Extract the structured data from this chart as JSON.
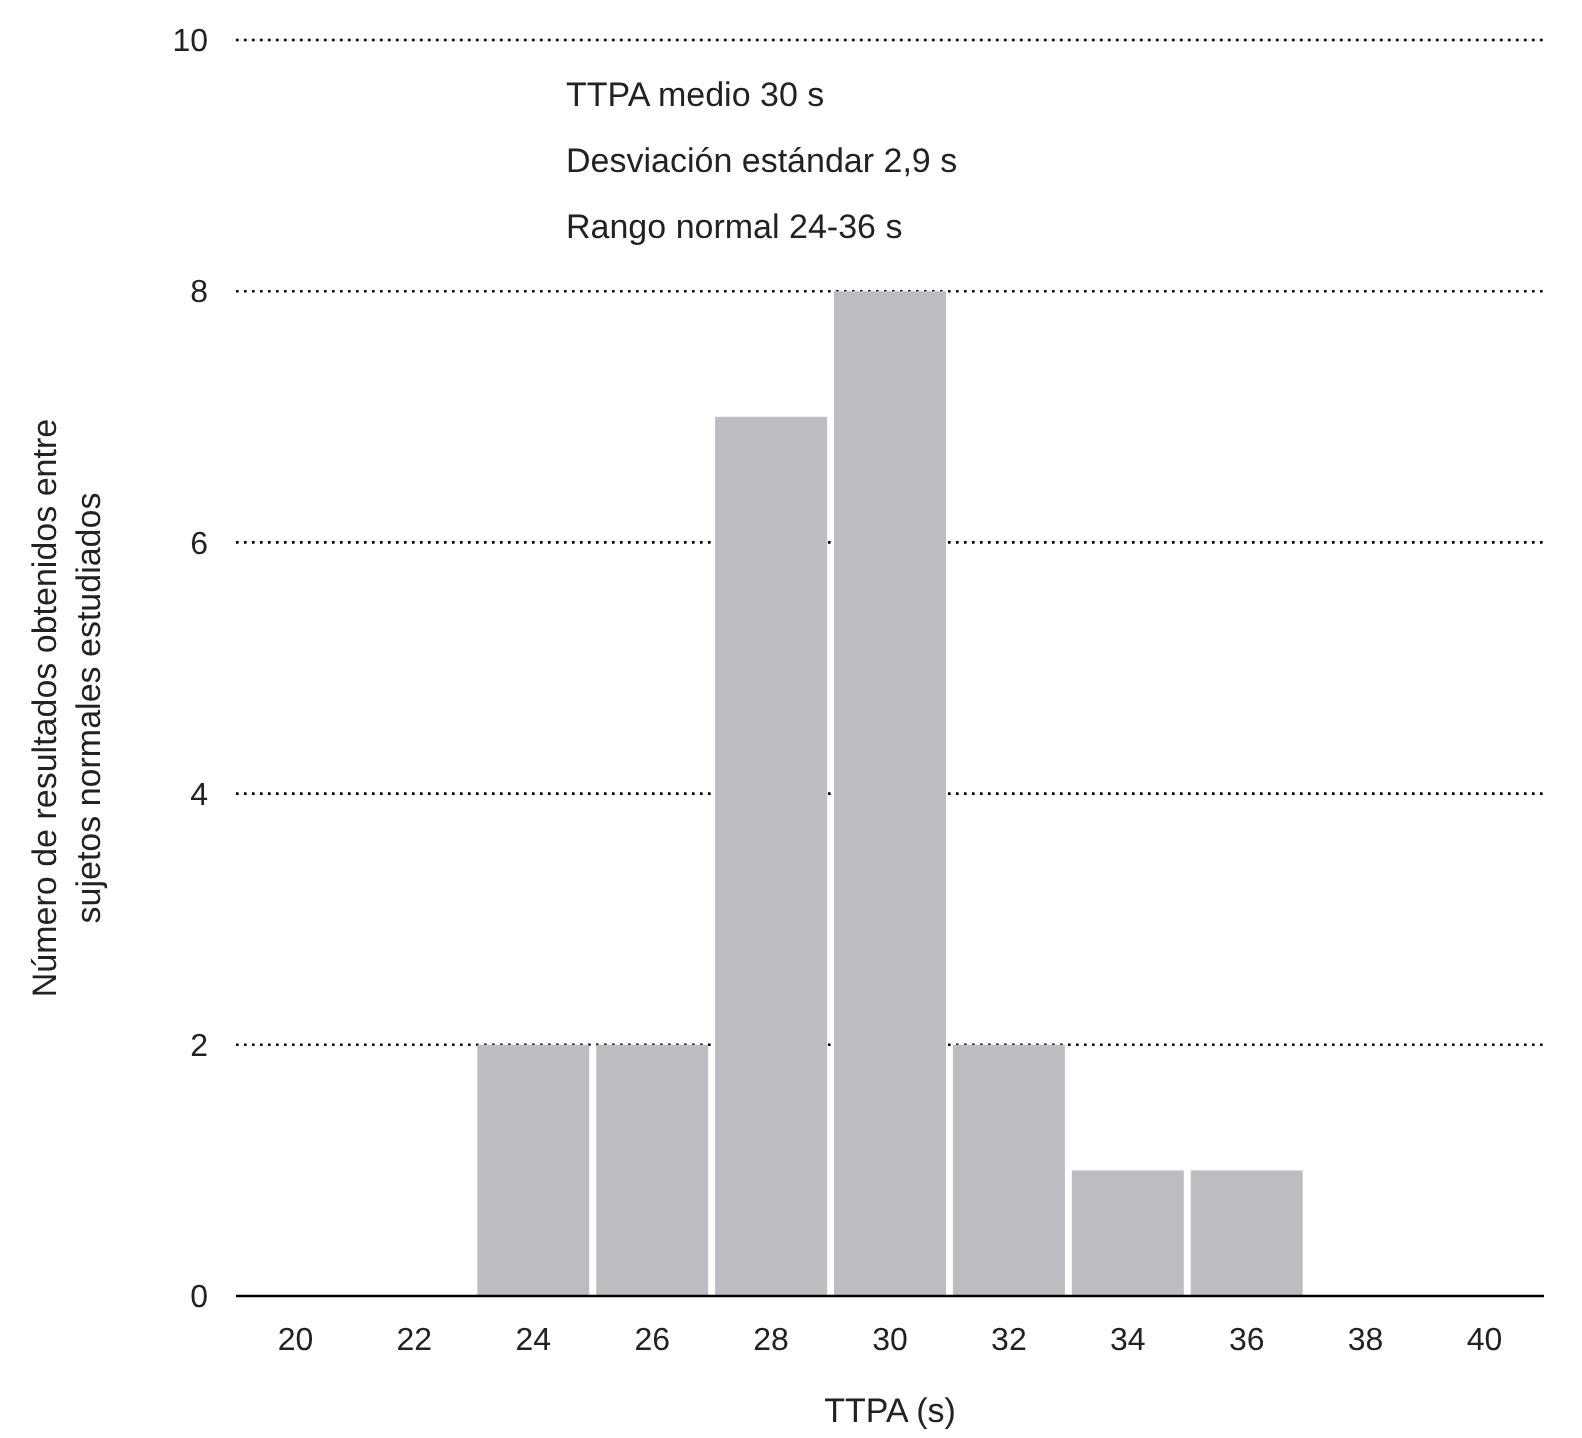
{
  "chart_data": {
    "type": "bar",
    "xlabel": "TTPA (s)",
    "ylabel": "Número de resultados obtenidos entre\nsujetos normales estudiados",
    "categories": [
      "20",
      "22",
      "24",
      "26",
      "28",
      "30",
      "32",
      "34",
      "36",
      "38",
      "40"
    ],
    "values": [
      0,
      0,
      2,
      2,
      7,
      8,
      2,
      1,
      1,
      0,
      0
    ],
    "color": "#bcbdc1",
    "ylim": [
      0,
      10
    ],
    "yticks": [
      0,
      2,
      4,
      6,
      8,
      10
    ],
    "grid": "y",
    "annotations": [
      "TTPA medio 30 s",
      "Desviación estándar 2,9 s",
      "Rango normal 24-36 s"
    ]
  }
}
